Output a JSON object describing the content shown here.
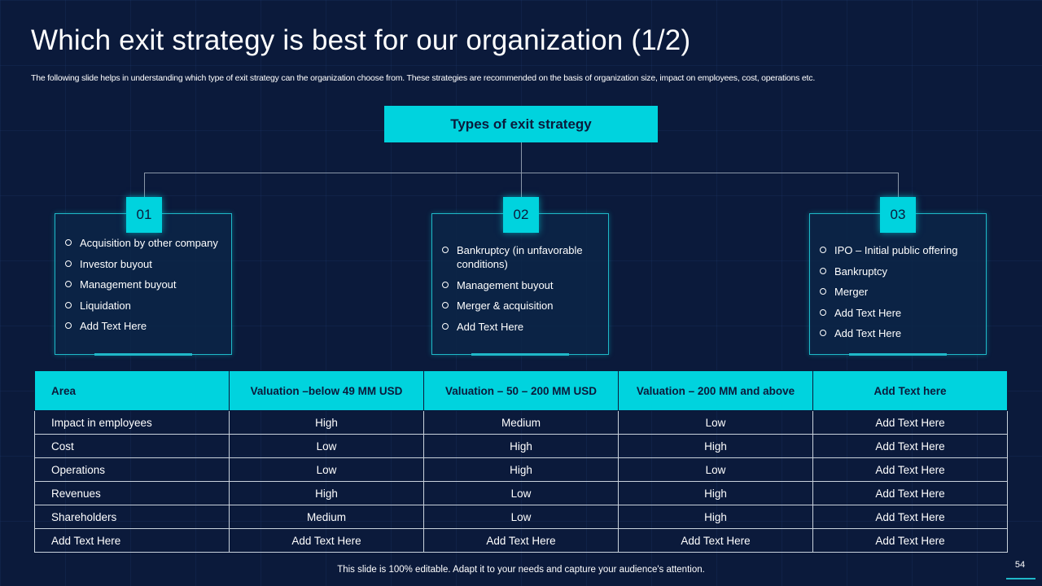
{
  "slide": {
    "title": "Which exit strategy is best for our organization (1/2)",
    "subtitle": "The following slide helps in understanding which type of exit strategy can the organization choose from. These strategies are recommended on the basis of organization size, impact on employees, cost, operations etc.",
    "footer_note": "This slide is 100% editable. Adapt it to your needs and capture your audience's attention.",
    "page_number": "54",
    "accent_color": "#00d3de",
    "background_color": "#0b1a3b"
  },
  "diagram": {
    "root": "Types of exit strategy",
    "cards": [
      {
        "number": "01",
        "items": [
          "Acquisition by other company",
          "Investor buyout",
          "Management buyout",
          "Liquidation",
          "Add Text Here"
        ]
      },
      {
        "number": "02",
        "items": [
          "Bankruptcy (in unfavorable conditions)",
          "Management buyout",
          "Merger & acquisition",
          "Add Text Here"
        ]
      },
      {
        "number": "03",
        "items": [
          "IPO – Initial public offering",
          "Bankruptcy",
          "Merger",
          "Add Text Here",
          "Add Text Here"
        ]
      }
    ]
  },
  "table": {
    "headers": [
      "Area",
      "Valuation –below 49 MM USD",
      "Valuation – 50 – 200 MM USD",
      "Valuation – 200 MM and above",
      "Add Text here"
    ],
    "rows": [
      [
        "Impact in employees",
        "High",
        "Medium",
        "Low",
        "Add Text Here"
      ],
      [
        "Cost",
        "Low",
        "High",
        "High",
        "Add Text Here"
      ],
      [
        "Operations",
        "Low",
        "High",
        "Low",
        "Add Text Here"
      ],
      [
        "Revenues",
        "High",
        "Low",
        "High",
        "Add Text Here"
      ],
      [
        "Shareholders",
        "Medium",
        "Low",
        "High",
        "Add Text Here"
      ],
      [
        "Add Text Here",
        "Add Text Here",
        "Add Text Here",
        "Add Text Here",
        "Add Text Here"
      ]
    ]
  }
}
